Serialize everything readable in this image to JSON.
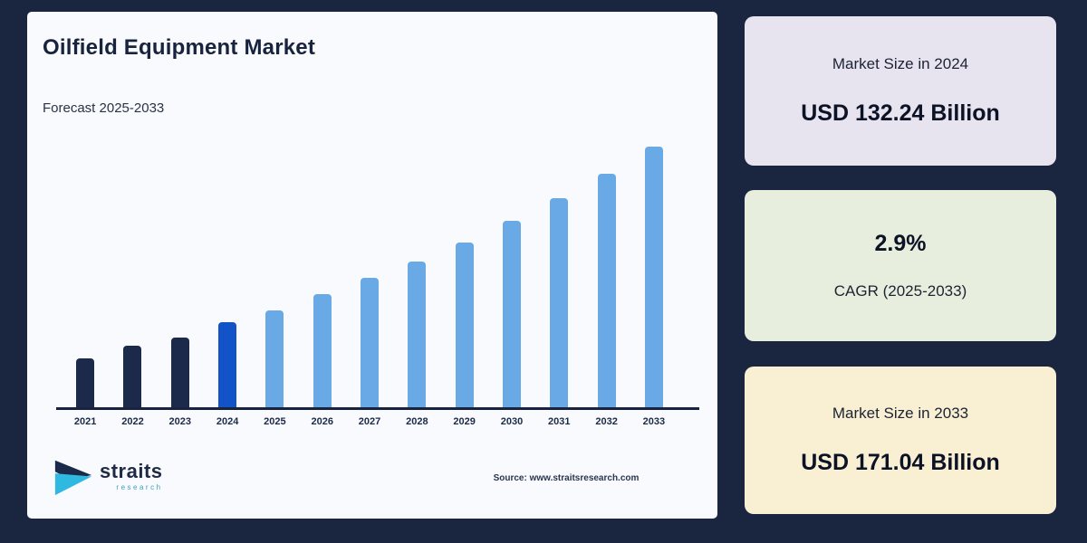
{
  "page": {
    "background_color": "#1a2540"
  },
  "chart_card": {
    "title": "Oilfield Equipment Market",
    "subtitle": "Forecast 2025-2033",
    "source": "Source: www.straitsresearch.com",
    "background_color": "#f9fafd",
    "logo": {
      "name": "straits",
      "sub": "research"
    }
  },
  "stats_cards": {
    "market_2024": {
      "label": "Market Size in 2024",
      "value": "USD 132.24 Billion",
      "bg": "#e7e3ef"
    },
    "cagr": {
      "value": "2.9%",
      "label": "CAGR (2025-2033)",
      "bg": "#e8eedd"
    },
    "market_2033": {
      "label": "Market Size in 2033",
      "value": "USD 171.04 Billion",
      "bg": "#f9f0d3"
    }
  },
  "chart_data": {
    "type": "bar",
    "title": "Oilfield Equipment Market",
    "subtitle": "Forecast 2025-2033",
    "unit": "USD Billion",
    "categories": [
      "2021",
      "2022",
      "2023",
      "2024",
      "2025",
      "2026",
      "2027",
      "2028",
      "2029",
      "2030",
      "2031",
      "2032",
      "2033"
    ],
    "bar_heights_relative": [
      18.8,
      23.6,
      26.7,
      32.6,
      37.2,
      43.4,
      49.7,
      55.9,
      63.2,
      71.5,
      80.2,
      89.6,
      100
    ],
    "bar_color_groups": [
      "historical",
      "historical",
      "historical",
      "base_year",
      "forecast",
      "forecast",
      "forecast",
      "forecast",
      "forecast",
      "forecast",
      "forecast",
      "forecast",
      "forecast"
    ],
    "bar_colors": {
      "historical": "#1b2a4a",
      "base_year": "#1353c8",
      "forecast": "#68a9e6"
    },
    "known_values": {
      "2024": 132.24,
      "2033": 171.04
    },
    "cagr_percent": 2.9,
    "cagr_period": "2025-2033",
    "axis": {
      "y_axis_visible": false,
      "gridlines": false,
      "baseline_color": "#18233f",
      "legend": "none"
    }
  }
}
